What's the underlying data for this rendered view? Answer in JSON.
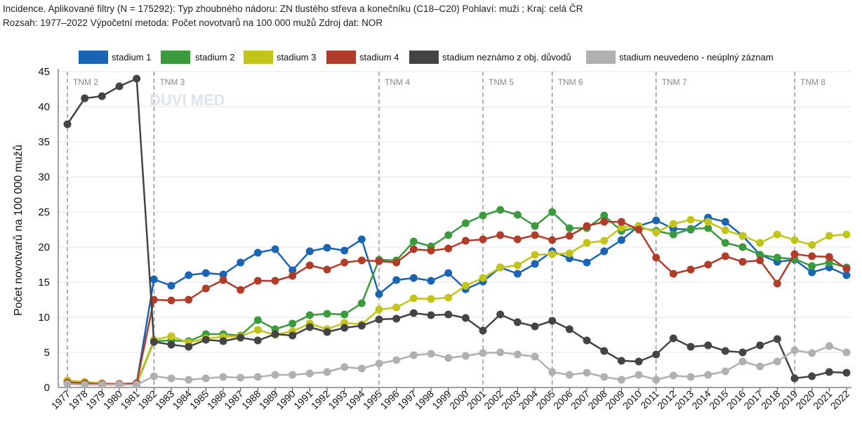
{
  "header": {
    "line1": "Incidence. Aplikované filtry (N = 175292): Typ zhoubného nádoru: ZN tlustého střeva a konečníku (C18–C20) Pohlaví: muži ; Kraj: celá ČR",
    "line2": "Rozsah: 1977–2022 Výpočetní metoda: Počet novotvarů na 100 000 mužů Zdroj dat: NOR"
  },
  "watermark": "DUVI MED",
  "chart_data": {
    "type": "line",
    "title": "",
    "xlabel": "",
    "ylabel": "Počet novotvarů na 100 000 mužů",
    "ylim": [
      0,
      45
    ],
    "yticks": [
      0,
      5,
      10,
      15,
      20,
      25,
      30,
      35,
      40,
      45
    ],
    "grid": true,
    "legend_position": "top",
    "x": [
      "1977",
      "1978",
      "1979",
      "1980",
      "1981",
      "1982",
      "1983",
      "1984",
      "1985",
      "1986",
      "1987",
      "1988",
      "1989",
      "1990",
      "1991",
      "1992",
      "1993",
      "1994",
      "1995",
      "1996",
      "1997",
      "1998",
      "1999",
      "2000",
      "2001",
      "2002",
      "2003",
      "2004",
      "2005",
      "2006",
      "2007",
      "2008",
      "2009",
      "2010",
      "2011",
      "2012",
      "2013",
      "2014",
      "2015",
      "2016",
      "2017",
      "2018",
      "2019",
      "2020",
      "2021",
      "2022"
    ],
    "tnm_markers": [
      {
        "label": "TNM 2",
        "year": "1977"
      },
      {
        "label": "TNM 3",
        "year": "1982"
      },
      {
        "label": "TNM 4",
        "year": "1995"
      },
      {
        "label": "TNM 5",
        "year": "2001"
      },
      {
        "label": "TNM 6",
        "year": "2005"
      },
      {
        "label": "TNM 7",
        "year": "2011"
      },
      {
        "label": "TNM 8",
        "year": "2019"
      }
    ],
    "series": [
      {
        "name": "stadium 1",
        "color": "#1a64b4",
        "values": [
          0.6,
          0.5,
          0.5,
          0.4,
          0.6,
          15.4,
          14.5,
          16.0,
          16.3,
          16.1,
          17.8,
          19.2,
          19.7,
          16.7,
          19.4,
          19.9,
          19.5,
          21.1,
          13.3,
          15.3,
          15.6,
          15.2,
          16.3,
          14.0,
          15.1,
          17.1,
          16.2,
          17.6,
          19.4,
          18.4,
          17.8,
          19.4,
          21.0,
          23.0,
          23.8,
          22.6,
          22.5,
          24.2,
          23.6,
          21.6,
          18.9,
          17.9,
          18.2,
          16.4,
          17.1,
          16.0
        ]
      },
      {
        "name": "stadium 2",
        "color": "#3a9a3c",
        "values": [
          0.8,
          0.7,
          0.5,
          0.5,
          0.5,
          6.6,
          6.7,
          6.6,
          7.6,
          7.6,
          7.4,
          9.6,
          8.3,
          9.1,
          10.3,
          10.5,
          10.4,
          12.0,
          18.2,
          18.1,
          20.8,
          20.1,
          21.7,
          23.4,
          24.5,
          25.3,
          24.6,
          23.0,
          25.0,
          22.7,
          22.7,
          24.5,
          22.3,
          22.8,
          22.3,
          21.8,
          22.6,
          22.7,
          20.6,
          20.0,
          18.9,
          18.5,
          18.3,
          17.3,
          17.8,
          17.1
        ]
      },
      {
        "name": "stadium 3",
        "color": "#c2c41a",
        "values": [
          1.0,
          0.8,
          0.6,
          0.5,
          0.6,
          6.8,
          7.3,
          6.4,
          7.0,
          7.2,
          7.3,
          8.2,
          7.5,
          8.0,
          9.1,
          8.3,
          9.2,
          9.0,
          11.1,
          11.4,
          12.7,
          12.6,
          12.8,
          14.5,
          15.6,
          17.1,
          17.4,
          18.9,
          19.0,
          19.1,
          20.6,
          20.9,
          22.8,
          23.0,
          22.1,
          23.3,
          23.9,
          23.6,
          22.4,
          21.6,
          20.6,
          21.8,
          21.0,
          20.3,
          21.6,
          21.8
        ]
      },
      {
        "name": "stadium 4",
        "color": "#b23c2a",
        "values": [
          0.7,
          0.6,
          0.5,
          0.5,
          0.6,
          12.5,
          12.4,
          12.5,
          14.1,
          15.3,
          13.9,
          15.2,
          15.2,
          15.9,
          17.4,
          16.8,
          17.8,
          18.1,
          18.0,
          17.8,
          19.7,
          19.5,
          19.8,
          20.9,
          21.1,
          21.7,
          21.1,
          21.7,
          21.0,
          21.6,
          23.0,
          23.6,
          23.6,
          22.5,
          18.5,
          16.2,
          16.8,
          17.5,
          18.7,
          17.9,
          18.1,
          14.8,
          19.0,
          18.7,
          18.6,
          16.9
        ]
      },
      {
        "name": "stadium neznámo z obj. důvodů",
        "color": "#444444",
        "values": [
          37.5,
          41.2,
          41.5,
          42.9,
          44.0,
          6.5,
          6.1,
          5.8,
          6.8,
          6.6,
          7.1,
          6.7,
          7.6,
          7.4,
          8.6,
          7.9,
          8.5,
          8.8,
          9.7,
          9.8,
          10.6,
          10.3,
          10.4,
          9.9,
          8.1,
          10.4,
          9.3,
          8.7,
          9.5,
          8.3,
          6.7,
          5.2,
          3.8,
          3.7,
          4.7,
          7.0,
          5.8,
          6.0,
          5.2,
          5.0,
          6.0,
          6.9,
          1.3,
          1.6,
          2.2,
          2.1
        ]
      },
      {
        "name": "stadium neuvedeno - neúplný záznam",
        "color": "#b0b0b0",
        "values": [
          0.5,
          0.4,
          0.4,
          0.4,
          0.4,
          1.6,
          1.3,
          1.1,
          1.3,
          1.5,
          1.4,
          1.5,
          1.8,
          1.8,
          2.0,
          2.2,
          2.9,
          2.7,
          3.4,
          3.9,
          4.6,
          4.8,
          4.2,
          4.5,
          4.9,
          5.0,
          4.7,
          4.4,
          2.2,
          1.8,
          2.1,
          1.5,
          1.1,
          1.8,
          1.1,
          1.7,
          1.5,
          1.8,
          2.3,
          3.7,
          3.0,
          3.7,
          5.3,
          4.9,
          5.9,
          5.0
        ]
      }
    ]
  }
}
